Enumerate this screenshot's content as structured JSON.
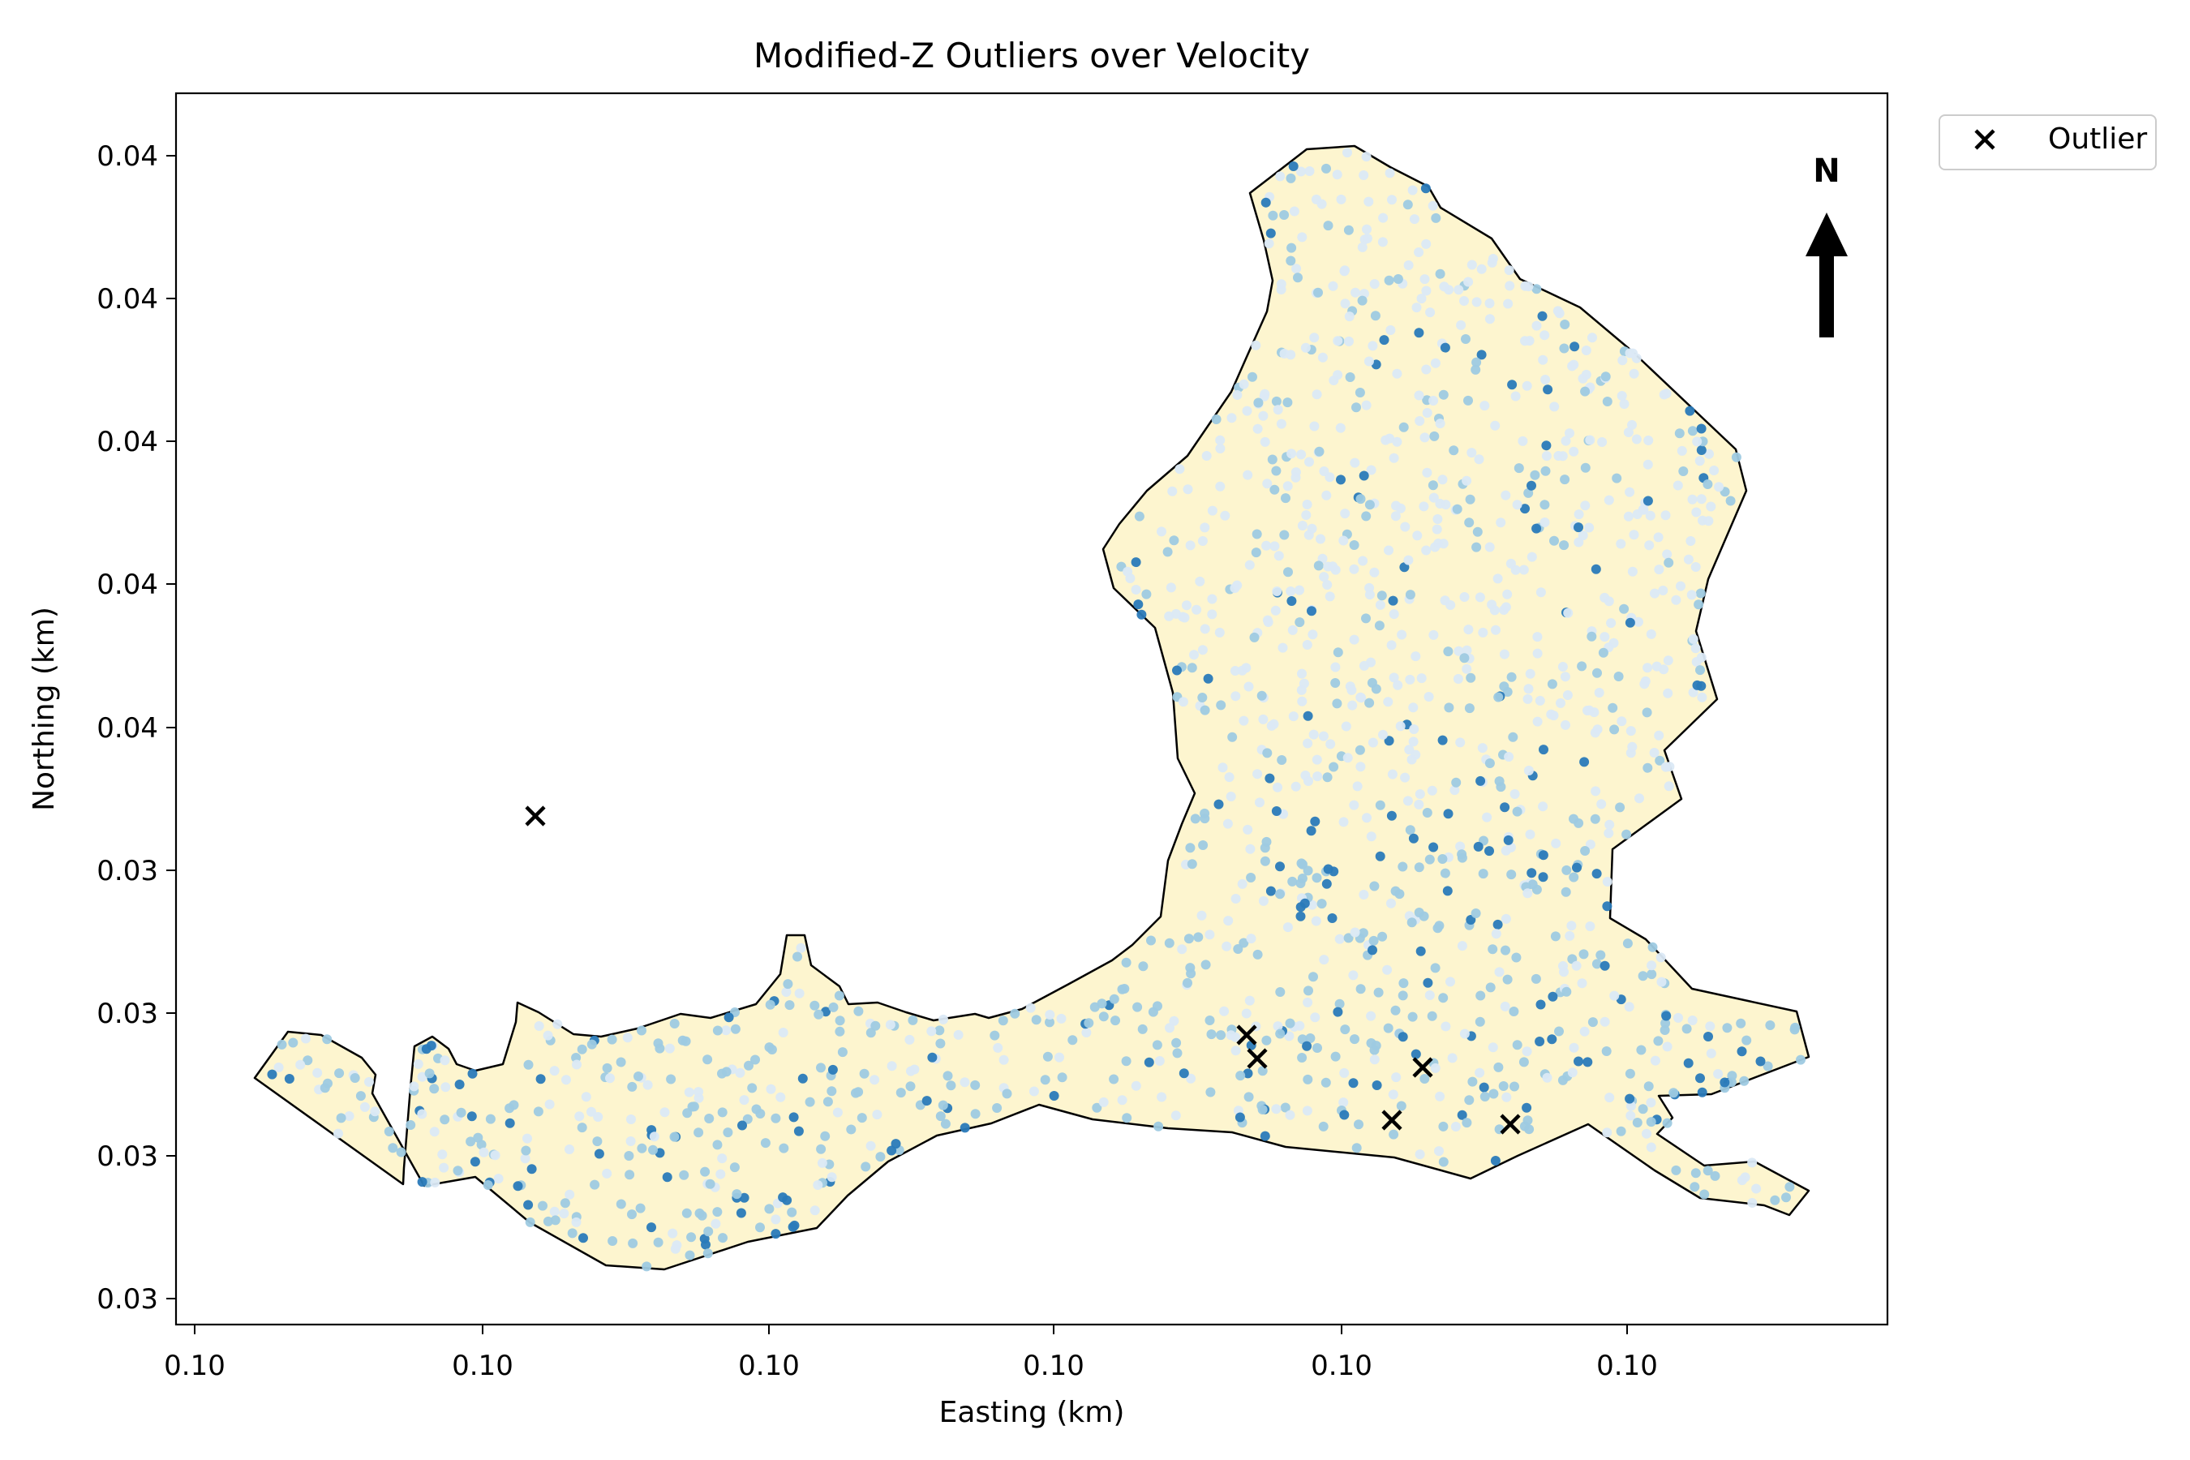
{
  "title": "Modified-Z Outliers over Velocity",
  "x_axis": {
    "label": "Easting (km)",
    "tick_labels": [
      "0.10",
      "0.10",
      "0.10",
      "0.10",
      "0.10",
      "0.10"
    ]
  },
  "y_axis": {
    "label": "Northing (km)",
    "tick_labels": [
      "0.04",
      "0.04",
      "0.04",
      "0.04",
      "0.04",
      "0.03",
      "0.03",
      "0.03",
      "0.03"
    ]
  },
  "legend": {
    "placement": "outside-top-right",
    "entries": [
      {
        "marker": "x",
        "label": "Outlier"
      }
    ]
  },
  "north_arrow": {
    "label": "N"
  },
  "colors": {
    "basin_fill": "#fdf5cf",
    "basin_outline": "#000000",
    "point_light": "#dbe9f6",
    "point_mid": "#9ecae1",
    "point_dark": "#2a7ab9",
    "outlier_marker": "#000000"
  },
  "icons": {
    "outlier_marker": "x-marker-icon",
    "north_arrow": "north-arrow-icon"
  },
  "map_data": {
    "type": "scatter-map",
    "layers": [
      "basin-polygon",
      "velocity-points",
      "outlier-markers"
    ],
    "outlier_count": 6
  }
}
